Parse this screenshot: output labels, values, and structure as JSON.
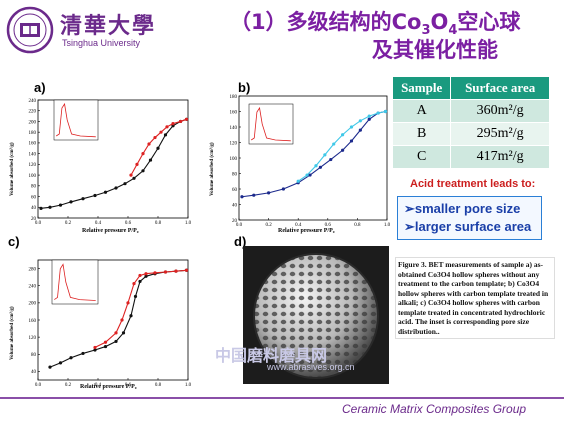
{
  "header": {
    "university_cn": "清華大學",
    "university_en": "Tsinghua University",
    "title_line1_prefix": "（1）多级结构的Co",
    "title_line1_sub1": "3",
    "title_line1_mid": "O",
    "title_line1_sub2": "4",
    "title_line1_suffix": "空心球",
    "title_line2": "及其催化性能"
  },
  "panels": {
    "a": {
      "label": "a)",
      "ylabel": "Volume absorbed (cm³/g)",
      "xlabel": "Relative pressure P/P₀"
    },
    "b": {
      "label": "b)",
      "ylabel": "Volume absorbed (cm³/g)",
      "xlabel": "Relative pressure P/P₀"
    },
    "c": {
      "label": "c)",
      "ylabel": "Volume absorbed (cm³/g)",
      "xlabel": "Relative pressure P/P₀"
    },
    "d": {
      "label": "d)"
    }
  },
  "table": {
    "headers": [
      "Sample",
      "Surface area"
    ],
    "rows": [
      {
        "sample": "A",
        "area": "360m²/g"
      },
      {
        "sample": "B",
        "area": "295m²/g"
      },
      {
        "sample": "C",
        "area": "417m²/g"
      }
    ]
  },
  "acid_heading": "Acid treatment leads to:",
  "bullets": [
    "➢smaller pore size",
    "➢larger surface area"
  ],
  "caption": "Figure 3. BET measurements of sample a) as-obtained Co3O4 hollow spheres without any treatment to the carbon template; b) Co3O4 hollow spheres with carbon template treated in alkali; c) Co3O4 hollow spheres with carbon template treated in concentrated hydrochloric acid. The inset is corresponding pore size distribution..",
  "watermark": {
    "cn": "中国磨料磨具网",
    "url": "www.abrasives.org.cn"
  },
  "footer": "Ceramic Matrix Composites Group",
  "colors": {
    "brand_purple": "#6b2a8b",
    "title_purple": "#7b1fa2",
    "table_header": "#1a9a7f",
    "acid_red": "#cc1f1f",
    "bullet_blue": "#1a3fa8"
  },
  "chart_data": [
    {
      "type": "line",
      "panel": "a",
      "xlabel": "Relative pressure P/P₀",
      "ylabel": "Volume absorbed (cm³/g)",
      "xlim": [
        0.0,
        1.0
      ],
      "ylim": [
        20,
        240
      ],
      "xticks": [
        "0.0",
        "0.2",
        "0.4",
        "0.6",
        "0.8",
        "1.0"
      ],
      "yticks": [
        "20",
        "40",
        "60",
        "80",
        "100",
        "120",
        "140",
        "160",
        "180",
        "200",
        "220",
        "240"
      ],
      "series": [
        {
          "color": "#111111",
          "x": [
            0.02,
            0.08,
            0.15,
            0.22,
            0.3,
            0.38,
            0.45,
            0.52,
            0.58,
            0.64,
            0.7,
            0.75,
            0.8,
            0.85,
            0.9,
            0.95,
            0.99
          ],
          "y": [
            38,
            40,
            44,
            50,
            56,
            62,
            68,
            76,
            84,
            94,
            108,
            128,
            150,
            175,
            192,
            200,
            204
          ]
        },
        {
          "color": "#dd2222",
          "x": [
            0.99,
            0.95,
            0.9,
            0.86,
            0.82,
            0.78,
            0.74,
            0.7,
            0.66,
            0.62
          ],
          "y": [
            204,
            200,
            196,
            190,
            180,
            170,
            158,
            140,
            120,
            100
          ]
        }
      ]
    },
    {
      "type": "line",
      "panel": "b",
      "xlabel": "Relative pressure P/P₀",
      "ylabel": "Volume absorbed (cm³/g)",
      "xlim": [
        0.0,
        1.0
      ],
      "ylim": [
        20,
        180
      ],
      "xticks": [
        "0.0",
        "0.2",
        "0.4",
        "0.6",
        "0.8",
        "1.0"
      ],
      "yticks": [
        "20",
        "40",
        "60",
        "80",
        "100",
        "120",
        "140",
        "160",
        "180"
      ],
      "series": [
        {
          "color": "#1c2a8c",
          "x": [
            0.02,
            0.1,
            0.2,
            0.3,
            0.4,
            0.48,
            0.55,
            0.62,
            0.7,
            0.76,
            0.82,
            0.88,
            0.94,
            0.99
          ],
          "y": [
            50,
            52,
            55,
            60,
            68,
            78,
            88,
            98,
            110,
            122,
            136,
            150,
            158,
            160
          ]
        },
        {
          "color": "#40c8e8",
          "x": [
            0.99,
            0.94,
            0.88,
            0.82,
            0.76,
            0.7,
            0.64,
            0.58,
            0.52,
            0.46,
            0.4
          ],
          "y": [
            160,
            158,
            154,
            148,
            140,
            130,
            118,
            104,
            90,
            78,
            70
          ]
        }
      ]
    },
    {
      "type": "line",
      "panel": "c",
      "xlabel": "Relative pressure P/P₀",
      "ylabel": "Volume absorbed (cm³/g)",
      "xlim": [
        0.0,
        1.0
      ],
      "ylim": [
        20,
        300
      ],
      "xticks": [
        "0.0",
        "0.2",
        "0.4",
        "0.6",
        "0.8",
        "1.0"
      ],
      "yticks": [
        "40",
        "80",
        "120",
        "160",
        "200",
        "240",
        "280"
      ],
      "series": [
        {
          "color": "#111111",
          "x": [
            0.08,
            0.15,
            0.22,
            0.3,
            0.38,
            0.45,
            0.52,
            0.57,
            0.62,
            0.65,
            0.68,
            0.72,
            0.78,
            0.85,
            0.92,
            0.99
          ],
          "y": [
            50,
            60,
            72,
            82,
            90,
            98,
            110,
            130,
            170,
            215,
            250,
            262,
            268,
            272,
            274,
            276
          ]
        },
        {
          "color": "#dd2222",
          "x": [
            0.99,
            0.92,
            0.85,
            0.78,
            0.72,
            0.68,
            0.64,
            0.6,
            0.56,
            0.52,
            0.45,
            0.38
          ],
          "y": [
            276,
            274,
            272,
            270,
            268,
            264,
            245,
            200,
            160,
            130,
            108,
            96
          ]
        }
      ]
    }
  ]
}
